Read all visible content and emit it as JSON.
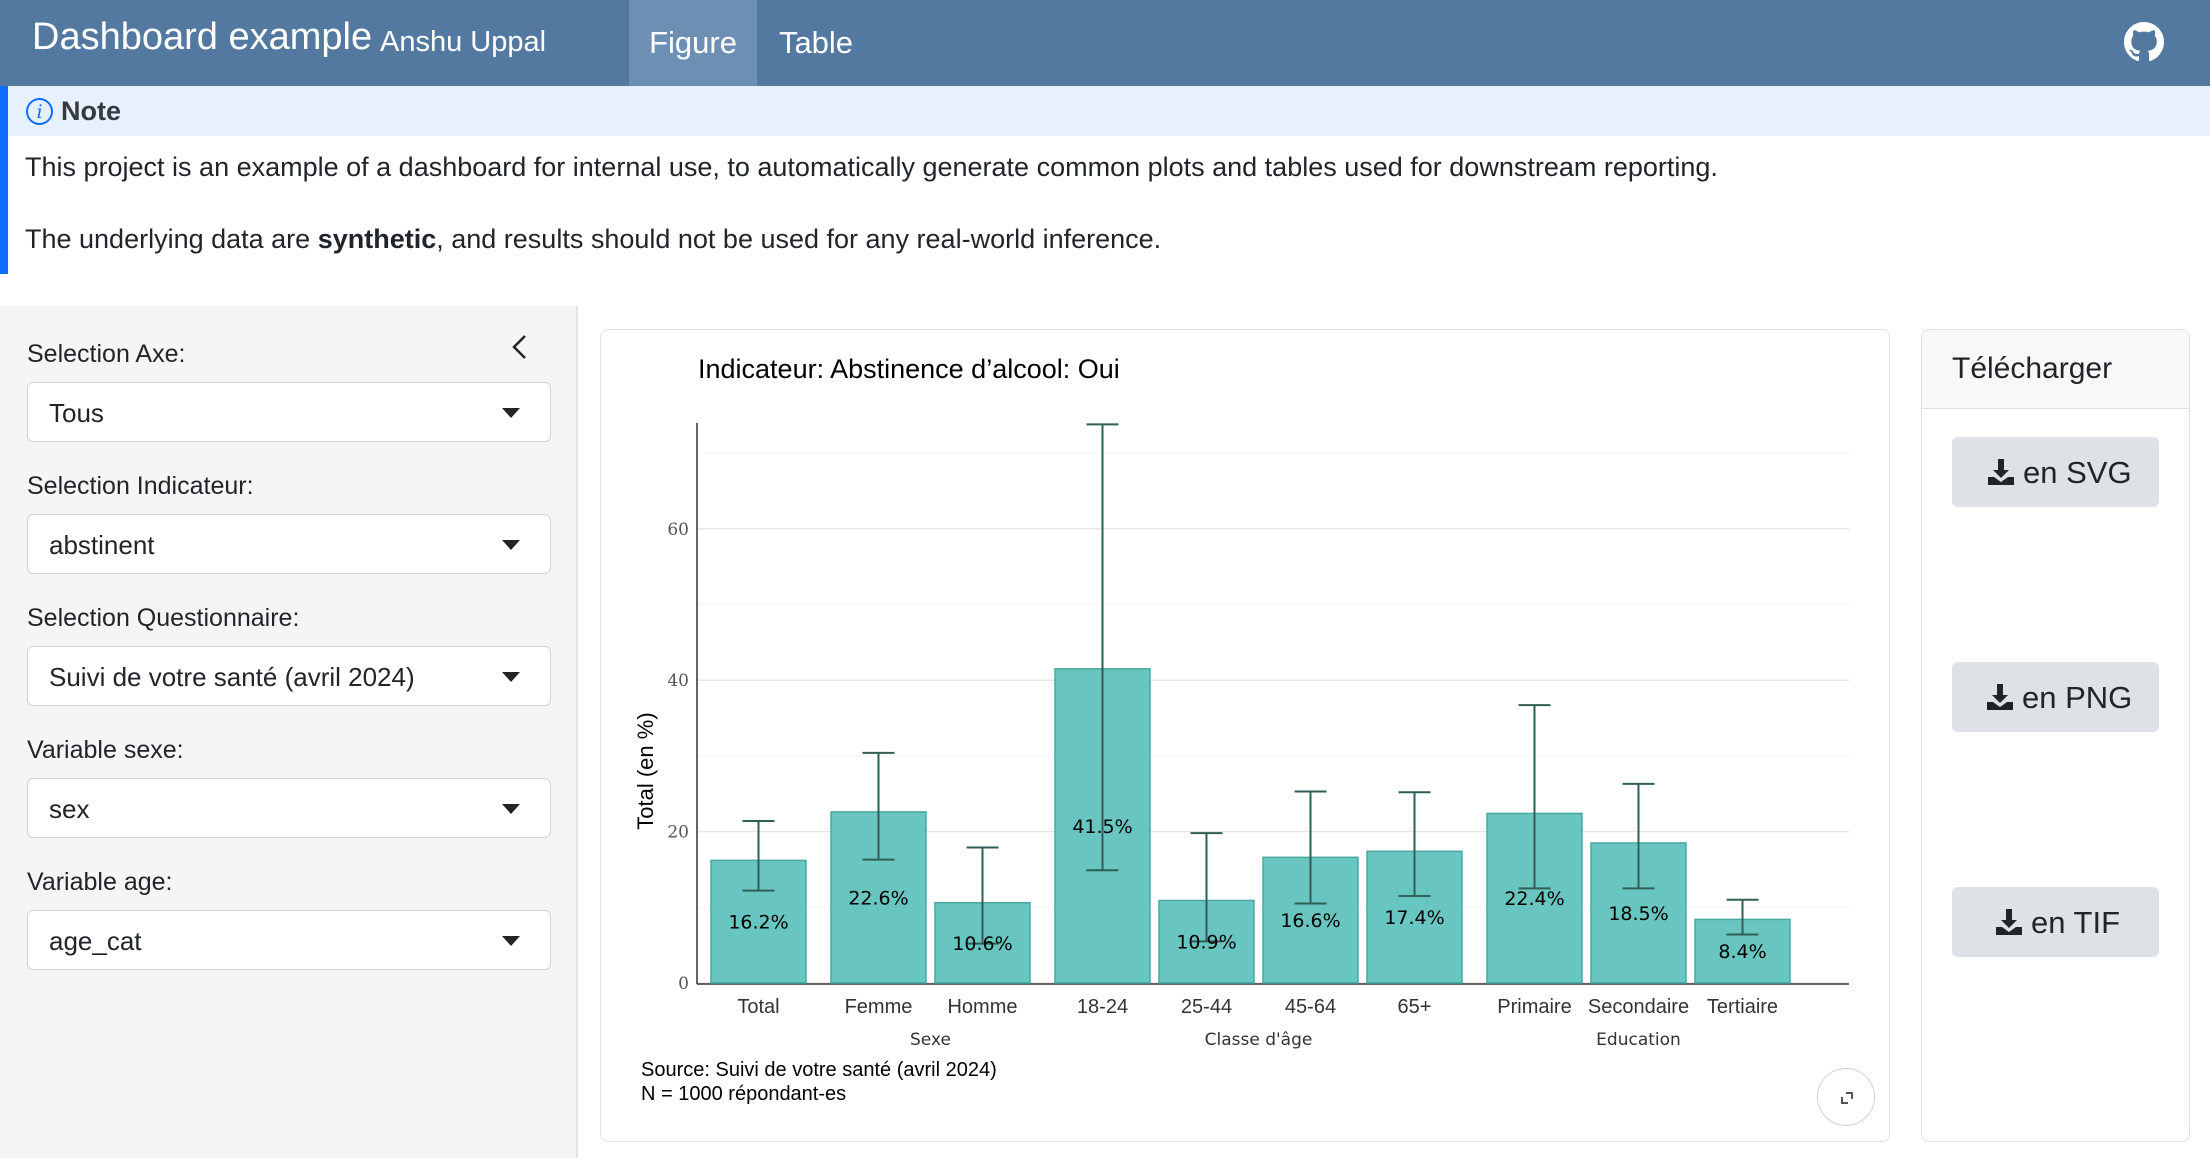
{
  "navbar": {
    "title": "Dashboard example",
    "subtitle": "Anshu Uppal",
    "tabs": [
      {
        "label": "Figure",
        "active": true
      },
      {
        "label": "Table",
        "active": false
      }
    ],
    "icon": "github-icon",
    "bg_color": "#5479a0"
  },
  "note": {
    "title": "Note",
    "line1": "This project is an example of a dashboard for internal use, to automatically generate common plots and tables used for downstream reporting.",
    "line2_pre": "The underlying data are ",
    "line2_bold": "synthetic",
    "line2_post": ", and results should not be used for any real-world inference.",
    "accent": "#0d6efd"
  },
  "sidebar": {
    "fields": [
      {
        "label": "Selection Axe:",
        "value": "Tous"
      },
      {
        "label": "Selection Indicateur:",
        "value": "abstinent"
      },
      {
        "label": "Selection Questionnaire:",
        "value": "Suivi de votre santé (avril 2024)"
      },
      {
        "label": "Variable sexe:",
        "value": "sex"
      },
      {
        "label": "Variable age:",
        "value": "age_cat"
      }
    ]
  },
  "download": {
    "title": "Télécharger",
    "buttons": [
      {
        "label": "en SVG"
      },
      {
        "label": "en PNG"
      },
      {
        "label": "en TIF"
      }
    ]
  },
  "chart_data": {
    "type": "bar",
    "title": "Indicateur: Abstinence d’alcool: Oui",
    "ylabel": "Total (en %)",
    "xlabel": "",
    "ylim": [
      0,
      74
    ],
    "yticks": [
      0,
      20,
      40,
      60
    ],
    "bar_color": "#69c5bf",
    "groups": [
      {
        "name": "",
        "categories": [
          "Total"
        ],
        "values": [
          16.2
        ],
        "labels": [
          "16.2%"
        ],
        "err_low": [
          12.2
        ],
        "err_high": [
          21.4
        ]
      },
      {
        "name": "Sexe",
        "categories": [
          "Femme",
          "Homme"
        ],
        "values": [
          22.6,
          10.6
        ],
        "labels": [
          "22.6%",
          "10.6%"
        ],
        "err_low": [
          16.3,
          5.2
        ],
        "err_high": [
          30.4,
          17.9
        ]
      },
      {
        "name": "Classe d'âge",
        "categories": [
          "18-24",
          "25-44",
          "45-64",
          "65+"
        ],
        "values": [
          41.5,
          10.9,
          16.6,
          17.4
        ],
        "labels": [
          "41.5%",
          "10.9%",
          "16.6%",
          "17.4%"
        ],
        "err_low": [
          14.9,
          5.5,
          10.5,
          11.5
        ],
        "err_high": [
          73.8,
          19.8,
          25.3,
          25.2
        ]
      },
      {
        "name": "Education",
        "categories": [
          "Primaire",
          "Secondaire",
          "Tertiaire"
        ],
        "values": [
          22.4,
          18.5,
          8.4
        ],
        "labels": [
          "22.4%",
          "18.5%",
          "8.4%"
        ],
        "err_low": [
          12.5,
          12.5,
          6.4
        ],
        "err_high": [
          36.7,
          26.3,
          11.0
        ]
      }
    ],
    "source": "Source: Suivi de votre santé (avril 2024)",
    "n": "N = 1000 répondant-es"
  }
}
